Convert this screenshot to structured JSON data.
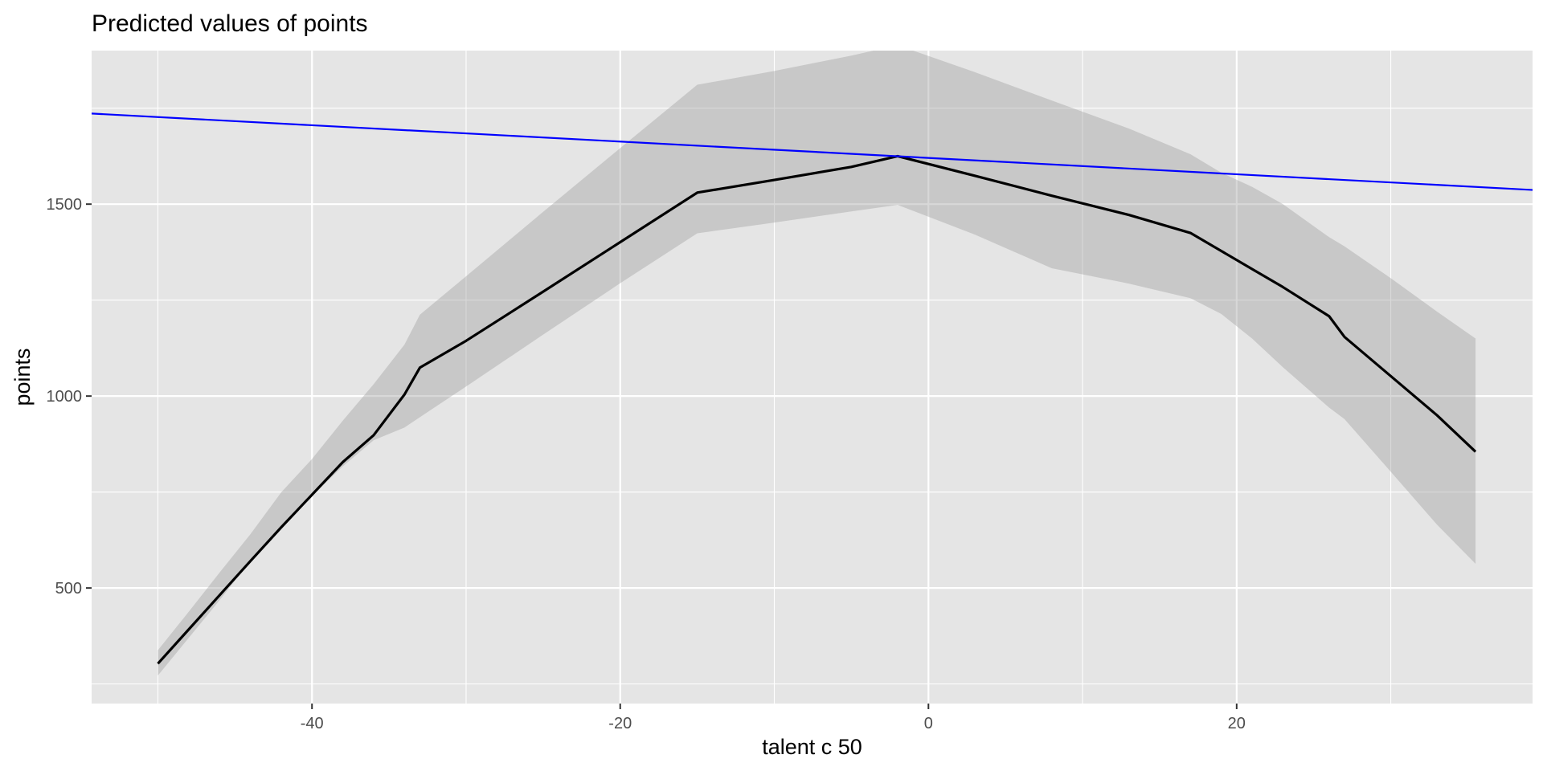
{
  "chart_data": {
    "type": "line",
    "title": "Predicted values of points",
    "xlabel": "talent c 50",
    "ylabel": "points",
    "xlim": [
      -54.3,
      39.2
    ],
    "ylim": [
      199,
      1900
    ],
    "x_ticks": [
      -40,
      -20,
      0,
      20
    ],
    "x_tick_labels": [
      "-40",
      "-20",
      "0",
      "20"
    ],
    "x_minor_ticks": [
      -50,
      -30,
      -10,
      10,
      30
    ],
    "y_ticks": [
      500,
      1000,
      1500
    ],
    "y_tick_labels": [
      "500",
      "1000",
      "1500"
    ],
    "y_minor_ticks": [
      250,
      750,
      1250,
      1750
    ],
    "grid": true,
    "panel_background": "#e5e5e5",
    "grid_color": "#ffffff",
    "series": [
      {
        "kind": "line",
        "color": "#000000",
        "x": [
          -50,
          -48,
          -46,
          -44,
          -42,
          -40,
          -38,
          -36,
          -34,
          -33,
          -30,
          -25,
          -20,
          -15,
          -10,
          -5,
          -2,
          3,
          8,
          13,
          17,
          19,
          21,
          23,
          26,
          27,
          30,
          33,
          35.5
        ],
        "y": [
          303,
          392,
          481,
          570,
          658,
          743,
          828,
          898,
          1004,
          1074,
          1144,
          1272,
          1401,
          1530,
          1563,
          1597,
          1625,
          1574,
          1522,
          1472,
          1425,
          1378,
          1331,
          1284,
          1208,
          1154,
          1052,
          950,
          855
        ]
      },
      {
        "kind": "ribbon",
        "color": "#999999",
        "opacity": 0.38,
        "x": [
          -50,
          -48,
          -46,
          -44,
          -42,
          -40,
          -38,
          -36,
          -34,
          -33,
          -30,
          -25,
          -20,
          -15,
          -10,
          -5,
          -2,
          3,
          8,
          13,
          17,
          19,
          21,
          23,
          26,
          27,
          30,
          33,
          35.5
        ],
        "lower": [
          272,
          370,
          468,
          570,
          660,
          740,
          817,
          885,
          918,
          945,
          1025,
          1160,
          1294,
          1424,
          1452,
          1481,
          1498,
          1421,
          1333,
          1293,
          1255,
          1214,
          1150,
          1075,
          970,
          940,
          803,
          665,
          563
        ],
        "upper": [
          338,
          438,
          540,
          640,
          749,
          836,
          936,
          1031,
          1134,
          1212,
          1312,
          1480,
          1646,
          1811,
          1847,
          1887,
          1914,
          1844,
          1770,
          1697,
          1630,
          1582,
          1545,
          1500,
          1414,
          1390,
          1307,
          1220,
          1150
        ]
      },
      {
        "kind": "line",
        "color": "#0000ff",
        "x": [
          -54.3,
          39.2
        ],
        "y": [
          1736,
          1537
        ]
      }
    ]
  }
}
